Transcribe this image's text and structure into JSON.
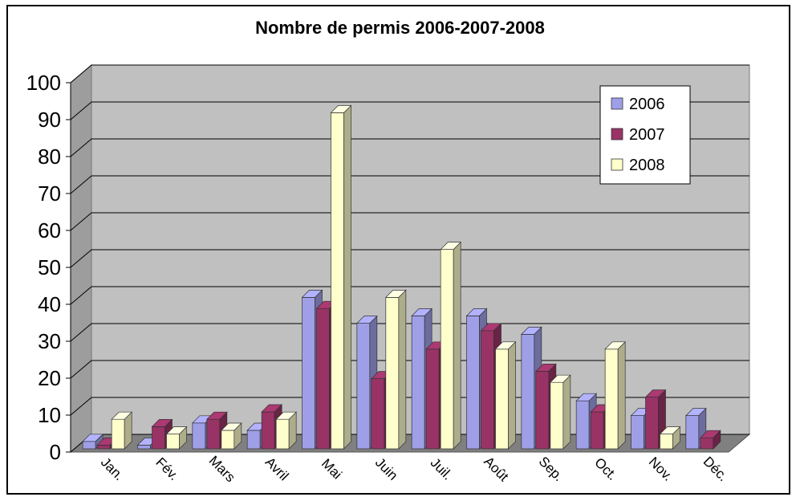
{
  "chart_data": {
    "type": "bar",
    "title": "Nombre de permis 2006-2007-2008",
    "categories": [
      "Jan.",
      "Fév.",
      "Mars",
      "Avril",
      "Mai",
      "Juin",
      "Juil.",
      "Août",
      "Sep.",
      "Oct.",
      "Nov.",
      "Déc."
    ],
    "series": [
      {
        "name": "2006",
        "color": "#9f9fe8",
        "values": [
          2,
          1,
          7,
          5,
          41,
          34,
          36,
          36,
          31,
          13,
          9,
          9
        ]
      },
      {
        "name": "2007",
        "color": "#993366",
        "values": [
          1,
          6,
          8,
          10,
          38,
          19,
          27,
          32,
          21,
          10,
          14,
          3
        ]
      },
      {
        "name": "2008",
        "color": "#ffffcc",
        "values": [
          8,
          4,
          5,
          8,
          91,
          41,
          54,
          27,
          18,
          27,
          4,
          0
        ]
      }
    ],
    "ylim": [
      0,
      100
    ],
    "yticks": [
      0,
      10,
      20,
      30,
      40,
      50,
      60,
      70,
      80,
      90,
      100
    ],
    "grid": true,
    "style": "3d-clustered-column",
    "legend_position": "top-right",
    "wall_color": "#c0c0c0",
    "floor_color": "#808080"
  }
}
